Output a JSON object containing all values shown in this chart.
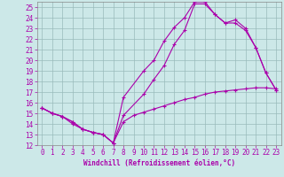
{
  "xlabel": "Windchill (Refroidissement éolien,°C)",
  "xlim": [
    -0.5,
    23.5
  ],
  "ylim": [
    12,
    25.5
  ],
  "xticks": [
    0,
    1,
    2,
    3,
    4,
    5,
    6,
    7,
    8,
    9,
    10,
    11,
    12,
    13,
    14,
    15,
    16,
    17,
    18,
    19,
    20,
    21,
    22,
    23
  ],
  "yticks": [
    12,
    13,
    14,
    15,
    16,
    17,
    18,
    19,
    20,
    21,
    22,
    23,
    24,
    25
  ],
  "bg_color": "#cce8e8",
  "line_color": "#aa00aa",
  "grid_color": "#99bbbb",
  "line1_x": [
    0,
    1,
    2,
    3,
    4,
    5,
    6,
    7,
    8,
    10,
    11,
    12,
    13,
    14,
    15,
    16,
    17,
    18,
    19,
    20,
    21,
    22,
    23
  ],
  "line1_y": [
    15.5,
    15.0,
    14.7,
    14.2,
    13.5,
    13.2,
    13.0,
    12.2,
    16.5,
    19.0,
    20.0,
    21.8,
    23.1,
    24.0,
    25.5,
    25.5,
    24.3,
    23.5,
    23.8,
    23.0,
    21.2,
    18.8,
    17.2
  ],
  "line2_x": [
    0,
    1,
    2,
    3,
    4,
    5,
    6,
    7,
    8,
    10,
    11,
    12,
    13,
    14,
    15,
    16,
    17,
    18,
    19,
    20,
    21,
    22,
    23
  ],
  "line2_y": [
    15.5,
    15.0,
    14.7,
    14.2,
    13.5,
    13.2,
    13.0,
    12.2,
    14.8,
    16.8,
    18.2,
    19.5,
    21.5,
    22.8,
    25.3,
    25.3,
    24.3,
    23.5,
    23.5,
    22.8,
    21.2,
    18.8,
    17.2
  ],
  "line3_x": [
    0,
    1,
    2,
    3,
    4,
    5,
    6,
    7,
    8,
    9,
    10,
    11,
    12,
    13,
    14,
    15,
    16,
    17,
    18,
    19,
    20,
    21,
    22,
    23
  ],
  "line3_y": [
    15.5,
    15.0,
    14.7,
    14.0,
    13.5,
    13.2,
    13.0,
    12.2,
    14.2,
    14.8,
    15.1,
    15.4,
    15.7,
    16.0,
    16.3,
    16.5,
    16.8,
    17.0,
    17.1,
    17.2,
    17.3,
    17.4,
    17.4,
    17.3
  ]
}
